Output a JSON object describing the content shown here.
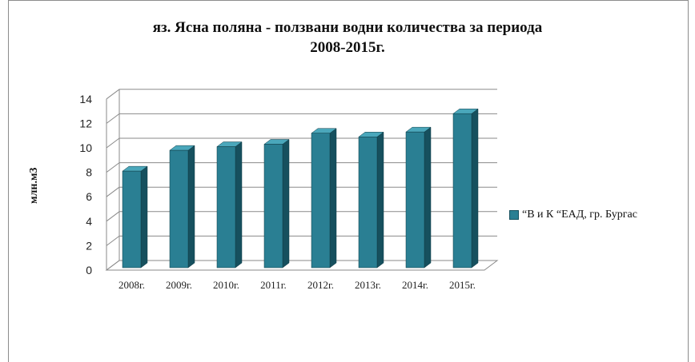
{
  "chart_data": {
    "type": "bar",
    "title_line1": "яз. Ясна поляна - ползвани водни количества за периода",
    "title_line2": "2008-2015г.",
    "ylabel": "млн.м3",
    "xlabel": "",
    "categories": [
      "2008г.",
      "2009г.",
      "2010г.",
      "2011г.",
      "2012г.",
      "2013г.",
      "2014г.",
      "2015г."
    ],
    "series": [
      {
        "name": "“В и К “ЕАД, гр. Бургас",
        "values": [
          7.9,
          9.6,
          9.9,
          10.1,
          11.0,
          10.7,
          11.1,
          12.6
        ]
      }
    ],
    "yticks": [
      "0",
      "2",
      "4",
      "6",
      "8",
      "10",
      "12",
      "14"
    ],
    "ylim": [
      0,
      14
    ],
    "grid": true,
    "legend_position": "right",
    "three_d": true,
    "colors": {
      "bar_front": "#2a7f93",
      "bar_side": "#16505e",
      "bar_top": "#4aa7bb"
    }
  }
}
